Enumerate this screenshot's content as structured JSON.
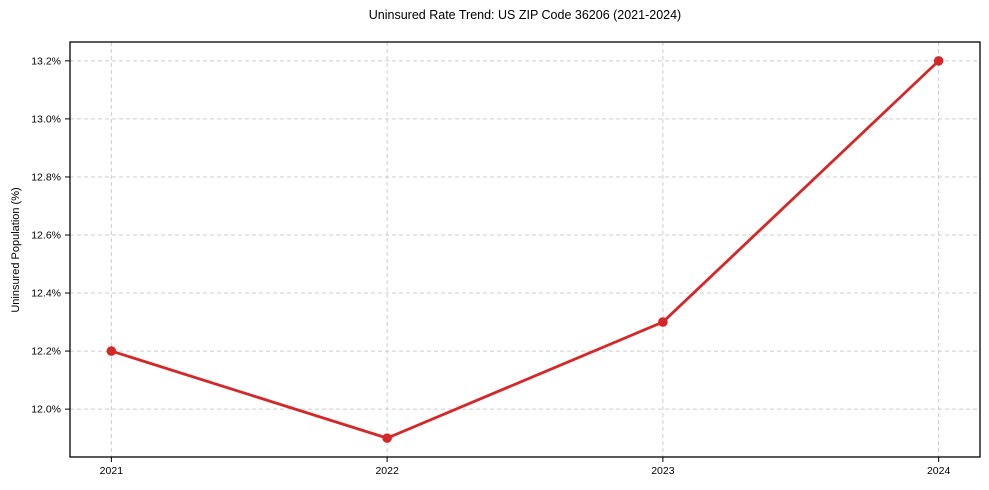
{
  "chart_data": {
    "type": "line",
    "title": "Uninsured Rate Trend: US ZIP Code 36206 (2021-2024)",
    "xlabel": "",
    "ylabel": "Uninsured Population (%)",
    "categories": [
      "2021",
      "2022",
      "2023",
      "2024"
    ],
    "x": [
      2021,
      2022,
      2023,
      2024
    ],
    "values": [
      12.2,
      11.9,
      12.3,
      13.2
    ],
    "ytick_values": [
      12.0,
      12.2,
      12.4,
      12.6,
      12.8,
      13.0,
      13.2
    ],
    "ytick_labels": [
      "12.0%",
      "12.2%",
      "12.4%",
      "12.6%",
      "12.8%",
      "13.0%",
      "13.2%"
    ],
    "xlim": [
      2020.85,
      2024.15
    ],
    "ylim": [
      11.835,
      13.265
    ],
    "grid": true,
    "grid_style": "dashed",
    "legend": "none",
    "colors": {
      "line": "#d62728",
      "marker": "#d62728",
      "grid": "#cccccc",
      "axis": "#000000",
      "background": "#ffffff",
      "text": "#000000"
    }
  }
}
